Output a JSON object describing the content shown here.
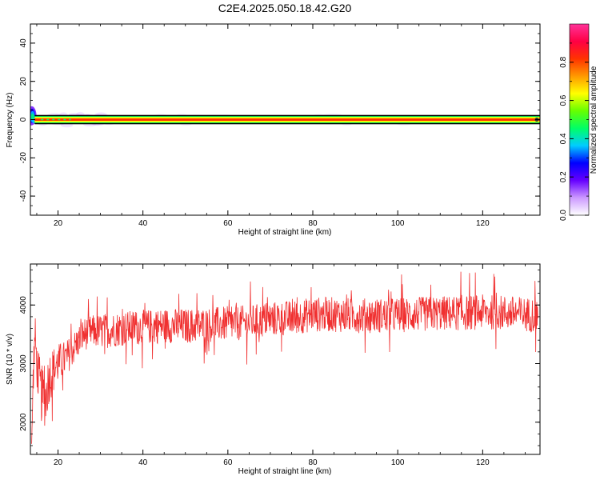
{
  "title": "C2E4.2025.050.18.42.G20",
  "chart_data": [
    {
      "type": "heatmap",
      "title": "",
      "xlabel": "Height of straight line (km)",
      "ylabel": "Frequency (Hz)",
      "xlim": [
        13.5,
        133.5
      ],
      "ylim": [
        -50,
        50
      ],
      "xticks": [
        20,
        40,
        60,
        80,
        100,
        120
      ],
      "yticks": [
        -40,
        -20,
        0,
        20,
        40
      ],
      "grid": false,
      "colorbar": {
        "label": "Normalized spectral amplitude",
        "range": [
          0,
          1
        ],
        "ticks": [
          0.0,
          0.2,
          0.4,
          0.6,
          0.8
        ],
        "colors": [
          "#ffffff",
          "#cc99ff",
          "#6600ff",
          "#0000ff",
          "#00ccff",
          "#00ff66",
          "#66ff00",
          "#ffff00",
          "#ff9900",
          "#ff3300",
          "#ff0044",
          "#ff3399"
        ]
      },
      "dominant_frequency_hz": 0,
      "band_halfwidth_hz": 1.8,
      "band_color": "#ff3300",
      "band_edge_color": "#000000"
    },
    {
      "type": "line",
      "title": "",
      "xlabel": "Height of straight line (km)",
      "ylabel": "SNR (10 * v/v)",
      "xlim": [
        13.5,
        133.5
      ],
      "ylim": [
        1450,
        4700
      ],
      "xticks": [
        20,
        40,
        60,
        80,
        100,
        120
      ],
      "yticks": [
        2000,
        3000,
        4000
      ],
      "grid": false,
      "series": [
        {
          "color": "#f03030",
          "x": [
            13.8,
            14.2,
            14.6,
            15,
            16,
            17,
            18,
            19,
            20,
            22,
            24,
            26,
            28,
            30,
            35,
            40,
            45,
            50,
            55,
            60,
            65,
            70,
            75,
            80,
            85,
            90,
            95,
            100,
            105,
            110,
            115,
            120,
            125,
            130,
            133
          ],
          "y": [
            1600,
            2900,
            3500,
            3000,
            2500,
            2400,
            2800,
            2900,
            3000,
            3100,
            3300,
            3500,
            3550,
            3550,
            3600,
            3620,
            3650,
            3640,
            3660,
            3680,
            3700,
            3760,
            3780,
            3840,
            3840,
            3820,
            3820,
            3830,
            3840,
            3860,
            3860,
            3880,
            3870,
            3840,
            3830
          ],
          "noise_amplitude": [
            50,
            400,
            350,
            400,
            500,
            500,
            450,
            400,
            350,
            300,
            280,
            280,
            280,
            300,
            300,
            300,
            300,
            300,
            300,
            300,
            300,
            300,
            300,
            300,
            300,
            300,
            300,
            300,
            300,
            300,
            300,
            300,
            300,
            300,
            300
          ]
        }
      ]
    }
  ]
}
